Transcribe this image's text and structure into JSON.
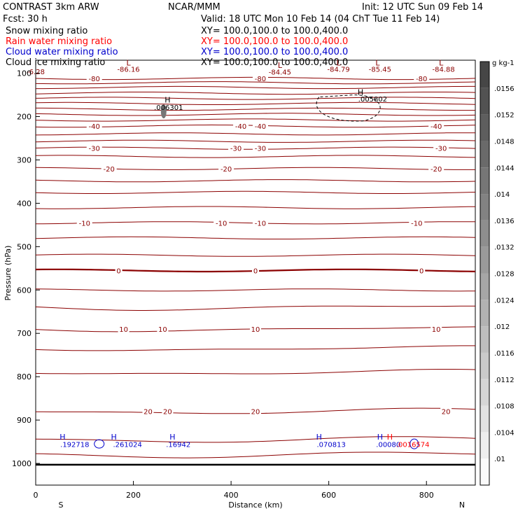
{
  "header": {
    "model": "CONTRAST  3km ARW",
    "org": "NCAR/MMM",
    "init": "Init: 12 UTC Sun 09 Feb 14",
    "fcst": "Fcst:    30 h",
    "valid": "Valid: 18 UTC Mon 10 Feb 14 (04 ChT Tue 11 Feb 14)"
  },
  "fields": [
    {
      "name": "Snow mixing ratio",
      "xy": "XY= 100.0,100.0 to 100.0,400.0",
      "color": "#000000"
    },
    {
      "name": "Rain water mixing ratio",
      "xy": "XY= 100.0,100.0 to 100.0,400.0",
      "color": "#ff0000"
    },
    {
      "name": "Cloud water mixing ratio",
      "xy": "XY= 100.0,100.0 to 100.0,400.0",
      "color": "#0000cc"
    },
    {
      "name": "Cloud ice mixing ratio",
      "xy": "XY= 100.0,100.0 to 100.0,400.0",
      "color": "#000000"
    }
  ],
  "colors": {
    "temp": "#8b0000",
    "cloud": "#0000cc",
    "rain": "#ff0000",
    "text": "#000000"
  },
  "chart_data": {
    "type": "contour",
    "xlabel": "Distance (km)",
    "ylabel": "Pressure (hPa)",
    "xlim": [
      0,
      900
    ],
    "ylim": [
      1050,
      70
    ],
    "xticks": [
      0,
      200,
      400,
      600,
      800
    ],
    "yticks": [
      100,
      200,
      300,
      400,
      500,
      600,
      700,
      800,
      900,
      1000
    ],
    "direction_labels": {
      "left": "S",
      "right": "N"
    },
    "ground_pressure": 1003,
    "temperature_contours": [
      {
        "p": 112,
        "level": -80,
        "labels": [
          {
            "x": 120,
            "t": "-80"
          },
          {
            "x": 460,
            "t": "-80"
          },
          {
            "x": 790,
            "t": "-80"
          }
        ]
      },
      {
        "p": 122,
        "level": null,
        "labels": []
      },
      {
        "p": 133,
        "level": null,
        "labels": []
      },
      {
        "p": 146,
        "level": null,
        "labels": []
      },
      {
        "p": 158,
        "level": null,
        "labels": []
      },
      {
        "p": 170,
        "level": null,
        "labels": []
      },
      {
        "p": 183,
        "level": null,
        "labels": []
      },
      {
        "p": 195,
        "level": null,
        "labels": []
      },
      {
        "p": 208,
        "level": null,
        "labels": []
      },
      {
        "p": 222,
        "level": -40,
        "labels": [
          {
            "x": 120,
            "t": "-40"
          },
          {
            "x": 420,
            "t": "-40"
          },
          {
            "x": 460,
            "t": "-40"
          },
          {
            "x": 820,
            "t": "-40"
          }
        ]
      },
      {
        "p": 240,
        "level": null,
        "labels": []
      },
      {
        "p": 257,
        "level": null,
        "labels": []
      },
      {
        "p": 273,
        "level": -30,
        "labels": [
          {
            "x": 120,
            "t": "-30"
          },
          {
            "x": 410,
            "t": "-30"
          },
          {
            "x": 460,
            "t": "-30"
          },
          {
            "x": 830,
            "t": "-30"
          }
        ]
      },
      {
        "p": 292,
        "level": null,
        "labels": []
      },
      {
        "p": 320,
        "level": -20,
        "labels": [
          {
            "x": 150,
            "t": "-20"
          },
          {
            "x": 390,
            "t": "-20"
          },
          {
            "x": 820,
            "t": "-20"
          }
        ]
      },
      {
        "p": 348,
        "level": null,
        "labels": []
      },
      {
        "p": 375,
        "level": null,
        "labels": []
      },
      {
        "p": 410,
        "level": null,
        "labels": []
      },
      {
        "p": 445,
        "level": -10,
        "labels": [
          {
            "x": 100,
            "t": "-10"
          },
          {
            "x": 380,
            "t": "-10"
          },
          {
            "x": 460,
            "t": "-10"
          },
          {
            "x": 780,
            "t": "-10"
          }
        ]
      },
      {
        "p": 480,
        "level": null,
        "labels": []
      },
      {
        "p": 520,
        "level": null,
        "labels": []
      },
      {
        "p": 555,
        "level": 0,
        "labels": [
          {
            "x": 170,
            "t": "0"
          },
          {
            "x": 450,
            "t": "0"
          },
          {
            "x": 790,
            "t": "0"
          }
        ]
      },
      {
        "p": 600,
        "level": null,
        "labels": []
      },
      {
        "p": 640,
        "level": null,
        "labels": []
      },
      {
        "p": 690,
        "level": 10,
        "labels": [
          {
            "x": 180,
            "t": "10"
          },
          {
            "x": 260,
            "t": "10"
          },
          {
            "x": 450,
            "t": "10"
          },
          {
            "x": 820,
            "t": "10"
          }
        ]
      },
      {
        "p": 735,
        "level": null,
        "labels": []
      },
      {
        "p": 790,
        "level": null,
        "labels": []
      },
      {
        "p": 880,
        "level": 20,
        "labels": [
          {
            "x": 230,
            "t": "20"
          },
          {
            "x": 270,
            "t": "20"
          },
          {
            "x": 450,
            "t": "20"
          },
          {
            "x": 840,
            "t": "20"
          }
        ]
      },
      {
        "p": 945,
        "level": null,
        "labels": []
      },
      {
        "p": 980,
        "level": null,
        "labels": []
      }
    ],
    "extrema_labels": [
      {
        "x": 0,
        "p": 102,
        "text": "-6.28",
        "color": "#8b0000",
        "kind": "value"
      },
      {
        "x": 190,
        "p": 82,
        "text": "L",
        "color": "#8b0000",
        "kind": "mark"
      },
      {
        "x": 190,
        "p": 97,
        "text": "-86.16",
        "color": "#8b0000",
        "kind": "value"
      },
      {
        "x": 500,
        "p": 88,
        "text": "L",
        "color": "#8b0000",
        "kind": "mark"
      },
      {
        "x": 500,
        "p": 103,
        "text": "-84.45",
        "color": "#8b0000",
        "kind": "value"
      },
      {
        "x": 620,
        "p": 82,
        "text": "L",
        "color": "#8b0000",
        "kind": "mark"
      },
      {
        "x": 620,
        "p": 97,
        "text": "-84.79",
        "color": "#8b0000",
        "kind": "value"
      },
      {
        "x": 700,
        "p": 82,
        "text": "L",
        "color": "#8b0000",
        "kind": "mark"
      },
      {
        "x": 705,
        "p": 97,
        "text": "-85.45",
        "color": "#8b0000",
        "kind": "value"
      },
      {
        "x": 830,
        "p": 82,
        "text": "L",
        "color": "#8b0000",
        "kind": "mark"
      },
      {
        "x": 835,
        "p": 97,
        "text": "-84.88",
        "color": "#8b0000",
        "kind": "value"
      },
      {
        "x": 270,
        "p": 168,
        "text": "H",
        "color": "#000000",
        "kind": "mark"
      },
      {
        "x": 272,
        "p": 185,
        "text": ".006301",
        "color": "#000000",
        "kind": "value"
      },
      {
        "x": 665,
        "p": 150,
        "text": "H",
        "color": "#000000",
        "kind": "mark"
      },
      {
        "x": 690,
        "p": 165,
        "text": ".005802",
        "color": "#000000",
        "kind": "value"
      },
      {
        "x": 55,
        "p": 945,
        "text": "H",
        "color": "#0000cc",
        "kind": "mark"
      },
      {
        "x": 80,
        "p": 962,
        "text": ".192718",
        "color": "#0000cc",
        "kind": "value"
      },
      {
        "x": 160,
        "p": 945,
        "text": "H",
        "color": "#0000cc",
        "kind": "mark"
      },
      {
        "x": 188,
        "p": 962,
        "text": ".261024",
        "color": "#0000cc",
        "kind": "value"
      },
      {
        "x": 280,
        "p": 945,
        "text": "H",
        "color": "#0000cc",
        "kind": "mark"
      },
      {
        "x": 292,
        "p": 962,
        "text": ".16942",
        "color": "#0000cc",
        "kind": "value"
      },
      {
        "x": 580,
        "p": 945,
        "text": "H",
        "color": "#0000cc",
        "kind": "mark"
      },
      {
        "x": 605,
        "p": 962,
        "text": ".070813",
        "color": "#0000cc",
        "kind": "value"
      },
      {
        "x": 705,
        "p": 945,
        "text": "H",
        "color": "#0000cc",
        "kind": "mark"
      },
      {
        "x": 722,
        "p": 962,
        "text": ".00080",
        "color": "#0000cc",
        "kind": "value"
      },
      {
        "x": 725,
        "p": 945,
        "text": "H",
        "color": "#ff0000",
        "kind": "mark"
      },
      {
        "x": 772,
        "p": 962,
        "text": ".0016574",
        "color": "#ff0000",
        "kind": "value"
      }
    ],
    "colorbar": {
      "unit": "g kg-1",
      "labels": [
        ".0156",
        ".0152",
        ".0148",
        ".0144",
        ".014",
        ".0136",
        ".0132",
        ".0128",
        ".0124",
        ".012",
        ".0116",
        ".0112",
        ".0108",
        ".0104",
        ".01"
      ]
    }
  }
}
